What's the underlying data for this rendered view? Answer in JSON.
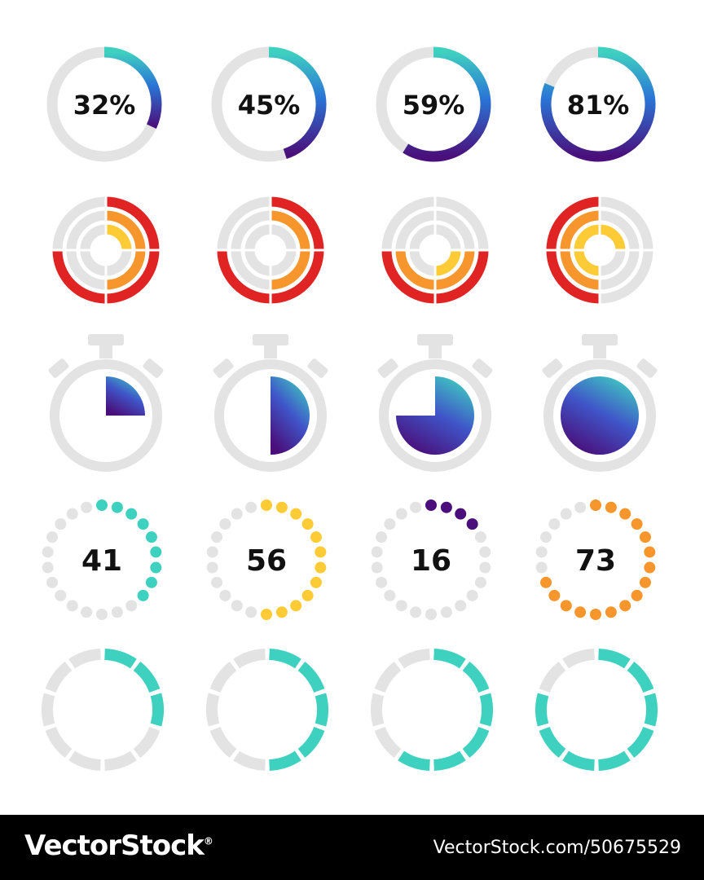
{
  "colors": {
    "track": "#e3e3e3",
    "teal": "#3fd1c0",
    "blue": "#2a74d6",
    "purple": "#4a0f7a",
    "violet": "#3a2aa0",
    "red": "#e02424",
    "orange": "#f8962e",
    "yellow": "#fdcb35",
    "text": "#111111"
  },
  "progress_rings": [
    {
      "label": "32%",
      "value": 0.32
    },
    {
      "label": "45%",
      "value": 0.45
    },
    {
      "label": "59%",
      "value": 0.59
    },
    {
      "label": "81%",
      "value": 0.81
    }
  ],
  "concentric_quadrants": [
    {
      "fills": [
        "yellow",
        "orange",
        "red"
      ],
      "quadrants": [
        [
          1
        ],
        [
          1,
          2
        ],
        [
          1,
          2,
          3
        ]
      ]
    },
    {
      "fills": [
        "yellow",
        "orange",
        "red"
      ],
      "quadrants": [
        [],
        [
          1,
          2
        ],
        [
          1,
          2,
          3
        ]
      ]
    },
    {
      "fills": [
        "yellow",
        "orange",
        "red"
      ],
      "quadrants": [
        [
          2
        ],
        [
          2,
          3
        ],
        [
          2,
          3
        ]
      ]
    },
    {
      "fills": [
        "yellow",
        "orange",
        "red"
      ],
      "quadrants": [
        [
          1,
          3,
          4
        ],
        [
          3,
          4
        ],
        [
          3,
          4
        ]
      ]
    }
  ],
  "stopwatches": [
    {
      "value": 0.25
    },
    {
      "value": 0.5
    },
    {
      "value": 0.75
    },
    {
      "value": 1.0
    }
  ],
  "dot_rings": [
    {
      "label": "41",
      "value": 0.41,
      "color": "teal"
    },
    {
      "label": "56",
      "value": 0.56,
      "color": "yellow"
    },
    {
      "label": "16",
      "value": 0.16,
      "color": "purple"
    },
    {
      "label": "73",
      "value": 0.73,
      "color": "orange"
    }
  ],
  "segment_rings": [
    {
      "value": 0.3
    },
    {
      "value": 0.45
    },
    {
      "value": 0.6
    },
    {
      "value": 0.8
    }
  ],
  "footer": {
    "logo": "VectorStock",
    "registered": "®",
    "url": "VectorStock.com/50675529"
  }
}
